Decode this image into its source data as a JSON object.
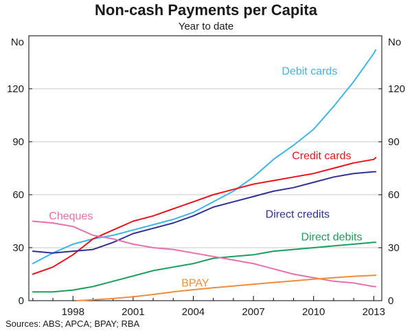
{
  "chart_data": {
    "type": "line",
    "title": "Non-cash Payments per Capita",
    "subtitle": "Year to date",
    "ylabel_left": "No",
    "ylabel_right": "No",
    "xlabel": "",
    "xlim": [
      1995.8,
      2013.4
    ],
    "ylim": [
      0,
      150
    ],
    "yticks": [
      0,
      30,
      60,
      90,
      120
    ],
    "ytick_labels": [
      "0",
      "30",
      "60",
      "90",
      "120"
    ],
    "xticks": [
      1998,
      2001,
      2004,
      2007,
      2010,
      2013
    ],
    "xtick_labels": [
      "1998",
      "2001",
      "2004",
      "2007",
      "2010",
      "2013"
    ],
    "source": "Sources: ABS; APCA; BPAY; RBA",
    "series": [
      {
        "name": "Debit cards",
        "color": "#3cb4e6",
        "points": [
          [
            1996,
            21
          ],
          [
            1997,
            27
          ],
          [
            1998,
            32
          ],
          [
            1999,
            35
          ],
          [
            2000,
            37
          ],
          [
            2001,
            40
          ],
          [
            2002,
            43
          ],
          [
            2003,
            46
          ],
          [
            2004,
            50
          ],
          [
            2005,
            56
          ],
          [
            2006,
            62
          ],
          [
            2007,
            70
          ],
          [
            2008,
            80
          ],
          [
            2009,
            88
          ],
          [
            2010,
            97
          ],
          [
            2011,
            110
          ],
          [
            2012,
            124
          ],
          [
            2013,
            140
          ],
          [
            2013.1,
            142
          ]
        ]
      },
      {
        "name": "Credit cards",
        "color": "#e8141c",
        "points": [
          [
            1996,
            15
          ],
          [
            1997,
            19
          ],
          [
            1998,
            26
          ],
          [
            1999,
            35
          ],
          [
            2000,
            40
          ],
          [
            2001,
            45
          ],
          [
            2002,
            48
          ],
          [
            2003,
            52
          ],
          [
            2004,
            56
          ],
          [
            2005,
            60
          ],
          [
            2006,
            63
          ],
          [
            2007,
            66
          ],
          [
            2008,
            68
          ],
          [
            2009,
            70
          ],
          [
            2010,
            72
          ],
          [
            2011,
            75
          ],
          [
            2012,
            78
          ],
          [
            2013,
            80
          ],
          [
            2013.1,
            81
          ]
        ]
      },
      {
        "name": "Direct credits",
        "color": "#2e3192",
        "points": [
          [
            1996,
            28
          ],
          [
            1997,
            27
          ],
          [
            1998,
            28
          ],
          [
            1999,
            29
          ],
          [
            2000,
            33
          ],
          [
            2001,
            38
          ],
          [
            2002,
            41
          ],
          [
            2003,
            44
          ],
          [
            2004,
            48
          ],
          [
            2005,
            53
          ],
          [
            2006,
            56
          ],
          [
            2007,
            59
          ],
          [
            2008,
            62
          ],
          [
            2009,
            64
          ],
          [
            2010,
            67
          ],
          [
            2011,
            70
          ],
          [
            2012,
            72
          ],
          [
            2013,
            73
          ],
          [
            2013.1,
            73
          ]
        ]
      },
      {
        "name": "Direct debits",
        "color": "#1b9e5a",
        "points": [
          [
            1996,
            5
          ],
          [
            1997,
            5
          ],
          [
            1998,
            6
          ],
          [
            1999,
            8
          ],
          [
            2000,
            11
          ],
          [
            2001,
            14
          ],
          [
            2002,
            17
          ],
          [
            2003,
            19
          ],
          [
            2004,
            21
          ],
          [
            2005,
            24
          ],
          [
            2006,
            25
          ],
          [
            2007,
            26
          ],
          [
            2008,
            28
          ],
          [
            2009,
            29
          ],
          [
            2010,
            30
          ],
          [
            2011,
            31
          ],
          [
            2012,
            32
          ],
          [
            2013,
            33
          ],
          [
            2013.1,
            33
          ]
        ]
      },
      {
        "name": "Cheques",
        "color": "#e86eac",
        "points": [
          [
            1996,
            45
          ],
          [
            1997,
            44
          ],
          [
            1998,
            42
          ],
          [
            1999,
            37
          ],
          [
            2000,
            35
          ],
          [
            2001,
            32
          ],
          [
            2002,
            30
          ],
          [
            2003,
            29
          ],
          [
            2004,
            27
          ],
          [
            2005,
            25
          ],
          [
            2006,
            23
          ],
          [
            2007,
            21
          ],
          [
            2008,
            18
          ],
          [
            2009,
            15
          ],
          [
            2010,
            13
          ],
          [
            2011,
            11
          ],
          [
            2012,
            10
          ],
          [
            2013,
            8
          ],
          [
            2013.1,
            8
          ]
        ]
      },
      {
        "name": "BPAY",
        "color": "#f08c3c",
        "points": [
          [
            1998.2,
            0
          ],
          [
            1999,
            0.5
          ],
          [
            2000,
            1.2
          ],
          [
            2001,
            2.2
          ],
          [
            2002,
            3.5
          ],
          [
            2003,
            5
          ],
          [
            2004,
            6.2
          ],
          [
            2005,
            7.3
          ],
          [
            2006,
            8.3
          ],
          [
            2007,
            9.3
          ],
          [
            2008,
            10.3
          ],
          [
            2009,
            11.2
          ],
          [
            2010,
            12.2
          ],
          [
            2011,
            13
          ],
          [
            2012,
            13.8
          ],
          [
            2013,
            14.3
          ],
          [
            2013.1,
            14.4
          ]
        ]
      }
    ],
    "annotations": [
      {
        "series": "Debit cards",
        "text": "Debit cards",
        "anchor": [
          2009.8,
          128
        ],
        "color": "#3cb4e6"
      },
      {
        "series": "Credit cards",
        "text": "Credit cards",
        "anchor": [
          2010.4,
          80
        ],
        "color": "#e8141c"
      },
      {
        "series": "Direct credits",
        "text": "Direct credits",
        "anchor": [
          2009.2,
          47
        ],
        "color": "#2e3192"
      },
      {
        "series": "Direct debits",
        "text": "Direct debits",
        "anchor": [
          2010.9,
          34
        ],
        "color": "#1b9e5a"
      },
      {
        "series": "Cheques",
        "text": "Cheques",
        "anchor": [
          1997.9,
          46
        ],
        "color": "#e86eac"
      },
      {
        "series": "BPAY",
        "text": "BPAY",
        "anchor": [
          2004.1,
          8
        ],
        "color": "#f08c3c"
      }
    ]
  }
}
